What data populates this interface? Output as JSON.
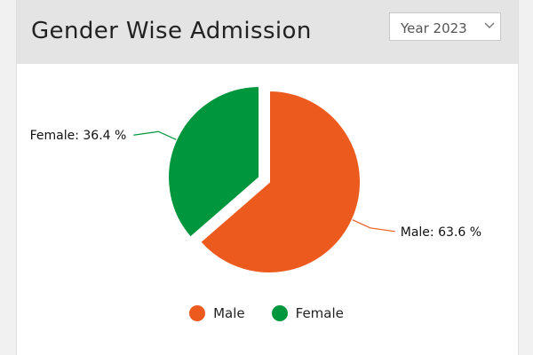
{
  "header": {
    "title": "Gender Wise Admission",
    "year_select": {
      "value": "Year 2023",
      "icon": "chevron-down-icon"
    }
  },
  "colors": {
    "male": "#ec5a1e",
    "female": "#00963e"
  },
  "chart_data": {
    "type": "pie",
    "title": "",
    "slices": [
      {
        "name": "Male",
        "value": 63.6,
        "label": "Male: 63.6 %",
        "color": "#ec5a1e"
      },
      {
        "name": "Female",
        "value": 36.4,
        "label": "Female: 36.4 %",
        "color": "#00963e"
      }
    ],
    "legend": {
      "position": "bottom",
      "items": [
        "Male",
        "Female"
      ]
    }
  }
}
